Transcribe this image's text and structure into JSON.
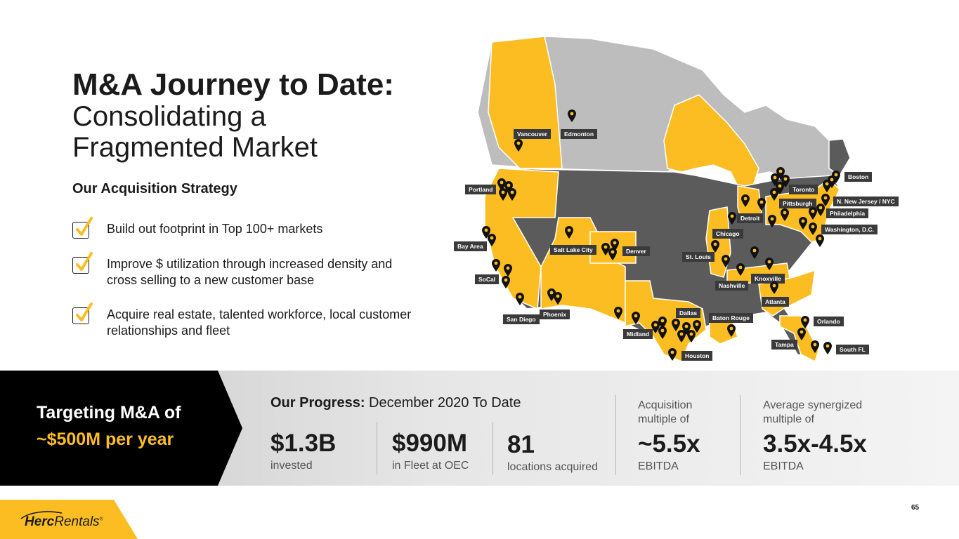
{
  "title": {
    "line1": "M&A Journey to Date:",
    "line2": "Consolidating a",
    "line3": "Fragmented Market"
  },
  "strategy": {
    "heading": "Our Acquisition Strategy",
    "items": [
      {
        "icon": "checkmark-icon",
        "text": "Build out footprint in Top 100+ markets"
      },
      {
        "icon": "checkmark-icon",
        "text": "Improve $ utilization through increased density and cross selling to a new customer base"
      },
      {
        "icon": "checkmark-icon",
        "text": "Acquire real estate, talented workforce, local customer relationships and fleet"
      }
    ]
  },
  "map": {
    "labels": [
      "Vancouver",
      "Edmonton",
      "Portland",
      "Bay Area",
      "SoCal",
      "San Diego",
      "Phoenix",
      "Salt Lake City",
      "Denver",
      "Midland",
      "Dallas",
      "Houston",
      "Baton Rouge",
      "St. Louis",
      "Chicago",
      "Detroit",
      "Nashville",
      "Knoxville",
      "Atlanta",
      "Toronto",
      "Pittsburgh",
      "Boston",
      "N. New Jersey / NYC",
      "Philadelphia",
      "Washington, D.C.",
      "Orlando",
      "Tampa",
      "South FL"
    ],
    "colors": {
      "active": "#fbbd22",
      "us_other": "#5b5b5b",
      "canada_other": "#bdbdbd",
      "label_bg": "#3a3a3a",
      "pin": "#111111"
    }
  },
  "target": {
    "line1": "Targeting M&A of",
    "line2": "~$500M per year"
  },
  "progress": {
    "title_bold": "Our Progress:",
    "title_rest": " December 2020 To Date",
    "stats": [
      {
        "value": "$1.3B",
        "label": "invested"
      },
      {
        "value": "$990M",
        "label": "in Fleet at OEC"
      },
      {
        "value": "81",
        "label": "locations acquired"
      }
    ],
    "acquisition": {
      "pre1": "Acquisition",
      "pre2": "multiple of",
      "value": "~5.5x",
      "label": "EBITDA"
    },
    "synergized": {
      "pre1": "Average synergized",
      "pre2": "multiple of",
      "value": "3.5x-4.5x",
      "label": "EBITDA"
    }
  },
  "logo": {
    "bold": "Herc",
    "rest": "Rentals",
    "mark": "®"
  },
  "page_number": "65",
  "colors": {
    "accent": "#fbbd22",
    "dark": "#1b1b1b"
  }
}
